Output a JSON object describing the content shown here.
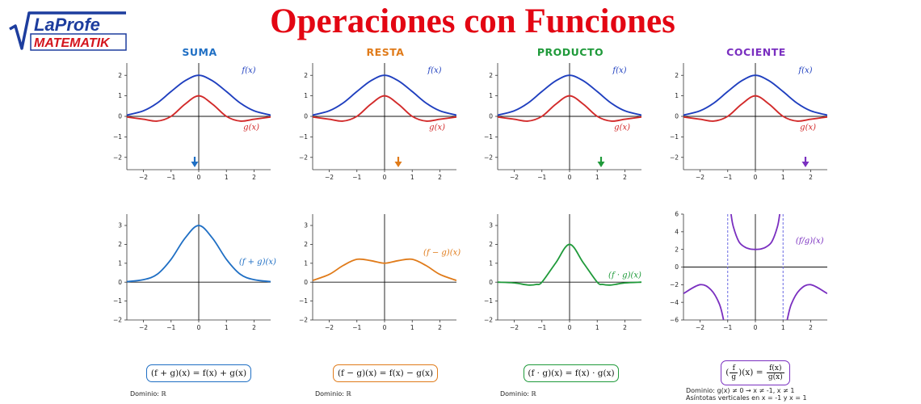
{
  "title": "Operaciones con Funciones",
  "logo": {
    "top": "LaProfe",
    "bottom": "MATEMATIK"
  },
  "colors": {
    "title": "#e30613",
    "f": "#1f3fbf",
    "g": "#d22a2a",
    "suma": "#1f6fc4",
    "resta": "#e07b1a",
    "producto": "#1f9a3a",
    "cociente": "#7a2fc0",
    "logo_blue": "#1d3d9e",
    "logo_red": "#d4141c"
  },
  "columns": [
    {
      "key": "suma",
      "title": "SUMA",
      "result_label": "(f + g)(x)",
      "formula": "(f + g)(x) = f(x) + g(x)",
      "domain": "Dominio: ℝ"
    },
    {
      "key": "resta",
      "title": "RESTA",
      "result_label": "(f − g)(x)",
      "formula": "(f − g)(x) = f(x) − g(x)",
      "domain": "Dominio: ℝ"
    },
    {
      "key": "producto",
      "title": "PRODUCTO",
      "result_label": "(f · g)(x)",
      "formula": "(f · g)(x) = f(x) · g(x)",
      "domain": "Dominio: ℝ"
    },
    {
      "key": "cociente",
      "title": "COCIENTE",
      "result_label": "(f/g)(x)",
      "formula_parts": {
        "lhs_num": "f",
        "lhs_den": "g",
        "mid": "(x) =",
        "rhs_num": "f(x)",
        "rhs_den": "g(x)"
      },
      "domain": "Dominio: g(x) ≠ 0  →  x ≠ -1, x ≠ 1",
      "asymptotes_note": "Asíntotas verticales en x = -1 y x = 1"
    }
  ],
  "chart_data": [
    {
      "type": "line",
      "panel": "suma-top",
      "xlim": [
        -2.6,
        2.6
      ],
      "ylim": [
        -2.6,
        2.6
      ],
      "xticks": [
        -2,
        -1,
        0,
        1,
        2
      ],
      "yticks": [
        -2,
        -1,
        0,
        1,
        2
      ],
      "series": [
        {
          "name": "f(x)",
          "x": [
            -2.6,
            -2.0,
            -1.5,
            -1.0,
            -0.5,
            0,
            0.5,
            1.0,
            1.5,
            2.0,
            2.6
          ],
          "y": [
            0.06,
            0.27,
            0.65,
            1.21,
            1.73,
            2.0,
            1.73,
            1.21,
            0.65,
            0.27,
            0.06
          ]
        },
        {
          "name": "g(x)",
          "x": [
            -2.6,
            -2.0,
            -1.5,
            -1.0,
            -0.5,
            0,
            0.5,
            1.0,
            1.5,
            2.0,
            2.6
          ],
          "y": [
            -0.03,
            -0.14,
            -0.23,
            0.0,
            0.59,
            1.0,
            0.59,
            0.0,
            -0.23,
            -0.14,
            -0.03
          ]
        }
      ]
    },
    {
      "type": "line",
      "panel": "resta-top",
      "xlim": [
        -2.6,
        2.6
      ],
      "ylim": [
        -2.6,
        2.6
      ],
      "xticks": [
        -2,
        -1,
        0,
        1,
        2
      ],
      "yticks": [
        -2,
        -1,
        0,
        1,
        2
      ],
      "series": [
        {
          "name": "f(x)",
          "x": [
            -2.6,
            -2.0,
            -1.5,
            -1.0,
            -0.5,
            0,
            0.5,
            1.0,
            1.5,
            2.0,
            2.6
          ],
          "y": [
            0.06,
            0.27,
            0.65,
            1.21,
            1.73,
            2.0,
            1.73,
            1.21,
            0.65,
            0.27,
            0.06
          ]
        },
        {
          "name": "g(x)",
          "x": [
            -2.6,
            -2.0,
            -1.5,
            -1.0,
            -0.5,
            0,
            0.5,
            1.0,
            1.5,
            2.0,
            2.6
          ],
          "y": [
            -0.03,
            -0.14,
            -0.23,
            0.0,
            0.59,
            1.0,
            0.59,
            0.0,
            -0.23,
            -0.14,
            -0.03
          ]
        }
      ]
    },
    {
      "type": "line",
      "panel": "producto-top",
      "xlim": [
        -2.6,
        2.6
      ],
      "ylim": [
        -2.6,
        2.6
      ],
      "xticks": [
        -2,
        -1,
        0,
        1,
        2
      ],
      "yticks": [
        -2,
        -1,
        0,
        1,
        2
      ],
      "series": [
        {
          "name": "f(x)",
          "x": [
            -2.6,
            -2.0,
            -1.5,
            -1.0,
            -0.5,
            0,
            0.5,
            1.0,
            1.5,
            2.0,
            2.6
          ],
          "y": [
            0.06,
            0.27,
            0.65,
            1.21,
            1.73,
            2.0,
            1.73,
            1.21,
            0.65,
            0.27,
            0.06
          ]
        },
        {
          "name": "g(x)",
          "x": [
            -2.6,
            -2.0,
            -1.5,
            -1.0,
            -0.5,
            0,
            0.5,
            1.0,
            1.5,
            2.0,
            2.6
          ],
          "y": [
            -0.03,
            -0.14,
            -0.23,
            0.0,
            0.59,
            1.0,
            0.59,
            0.0,
            -0.23,
            -0.14,
            -0.03
          ]
        }
      ]
    },
    {
      "type": "line",
      "panel": "cociente-top",
      "xlim": [
        -2.6,
        2.6
      ],
      "ylim": [
        -2.6,
        2.6
      ],
      "xticks": [
        -2,
        -1,
        0,
        1,
        2
      ],
      "yticks": [
        -2,
        -1,
        0,
        1,
        2
      ],
      "series": [
        {
          "name": "f(x)",
          "x": [
            -2.6,
            -2.0,
            -1.5,
            -1.0,
            -0.5,
            0,
            0.5,
            1.0,
            1.5,
            2.0,
            2.6
          ],
          "y": [
            0.06,
            0.27,
            0.65,
            1.21,
            1.73,
            2.0,
            1.73,
            1.21,
            0.65,
            0.27,
            0.06
          ]
        },
        {
          "name": "g(x)",
          "x": [
            -2.6,
            -2.0,
            -1.5,
            -1.0,
            -0.5,
            0,
            0.5,
            1.0,
            1.5,
            2.0,
            2.6
          ],
          "y": [
            -0.03,
            -0.14,
            -0.23,
            0.0,
            0.59,
            1.0,
            0.59,
            0.0,
            -0.23,
            -0.14,
            -0.03
          ]
        }
      ]
    },
    {
      "type": "line",
      "panel": "suma-bottom",
      "xlim": [
        -2.6,
        2.6
      ],
      "ylim": [
        -2.0,
        3.6
      ],
      "xticks": [
        -2,
        -1,
        0,
        1,
        2
      ],
      "yticks": [
        -2,
        -1,
        0,
        1,
        2,
        3
      ],
      "series": [
        {
          "name": "(f + g)(x)",
          "x": [
            -2.6,
            -2.0,
            -1.5,
            -1.0,
            -0.5,
            0,
            0.5,
            1.0,
            1.5,
            2.0,
            2.6
          ],
          "y": [
            0.03,
            0.13,
            0.42,
            1.21,
            2.32,
            3.0,
            2.32,
            1.21,
            0.42,
            0.13,
            0.03
          ]
        }
      ]
    },
    {
      "type": "line",
      "panel": "resta-bottom",
      "xlim": [
        -2.6,
        2.6
      ],
      "ylim": [
        -2.0,
        3.6
      ],
      "xticks": [
        -2,
        -1,
        0,
        1,
        2
      ],
      "yticks": [
        -2,
        -1,
        0,
        1,
        2,
        3
      ],
      "series": [
        {
          "name": "(f − g)(x)",
          "x": [
            -2.6,
            -2.0,
            -1.5,
            -1.0,
            -0.5,
            0,
            0.5,
            1.0,
            1.5,
            2.0,
            2.6
          ],
          "y": [
            0.09,
            0.41,
            0.88,
            1.21,
            1.14,
            1.0,
            1.14,
            1.21,
            0.88,
            0.41,
            0.09
          ]
        }
      ]
    },
    {
      "type": "line",
      "panel": "producto-bottom",
      "xlim": [
        -2.6,
        2.6
      ],
      "ylim": [
        -2.0,
        3.6
      ],
      "xticks": [
        -2,
        -1,
        0,
        1,
        2
      ],
      "yticks": [
        -2,
        -1,
        0,
        1,
        2,
        3
      ],
      "series": [
        {
          "name": "(f · g)(x)",
          "x": [
            -2.6,
            -2.0,
            -1.5,
            -1.2,
            -1.0,
            -0.5,
            0,
            0.5,
            1.0,
            1.2,
            1.5,
            2.0,
            2.6
          ],
          "y": [
            0.0,
            -0.04,
            -0.15,
            -0.12,
            0.0,
            1.02,
            2.0,
            1.02,
            0.0,
            -0.12,
            -0.15,
            -0.04,
            0.0
          ]
        }
      ]
    },
    {
      "type": "line",
      "panel": "cociente-bottom",
      "xlim": [
        -2.6,
        2.6
      ],
      "ylim": [
        -6,
        6
      ],
      "xticks": [
        -2,
        -1,
        0,
        1,
        2
      ],
      "yticks": [
        -6,
        -4,
        -2,
        0,
        2,
        4,
        6
      ],
      "asymptotes": [
        -1,
        1
      ],
      "series": [
        {
          "name": "(f/g)(x)",
          "x": [
            -2.6,
            -2.0,
            -1.6,
            -1.3,
            -1.15
          ],
          "y": [
            -3.0,
            -2.0,
            -2.6,
            -4.2,
            -6.0
          ]
        },
        {
          "name": "(f/g)(x)",
          "x": [
            -0.88,
            -0.8,
            -0.6,
            -0.4,
            -0.2,
            0,
            0.2,
            0.4,
            0.6,
            0.8,
            0.88
          ],
          "y": [
            6.0,
            4.6,
            2.9,
            2.3,
            2.05,
            2.0,
            2.05,
            2.3,
            2.9,
            4.6,
            6.0
          ]
        },
        {
          "name": "(f/g)(x)",
          "x": [
            1.15,
            1.3,
            1.6,
            2.0,
            2.6
          ],
          "y": [
            -6.0,
            -4.2,
            -2.6,
            -2.0,
            -3.0
          ]
        }
      ]
    }
  ]
}
